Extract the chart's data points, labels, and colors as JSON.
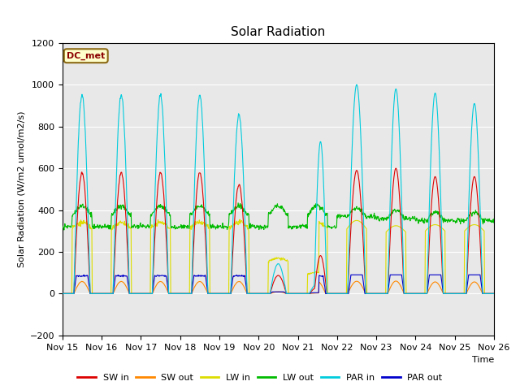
{
  "title": "Solar Radiation",
  "xlabel": "Time",
  "ylabel": "Solar Radiation (W/m2 umol/m2/s)",
  "ylim": [
    -200,
    1200
  ],
  "xlim": [
    0,
    264
  ],
  "yticks": [
    -200,
    0,
    200,
    400,
    600,
    800,
    1000,
    1200
  ],
  "xtick_labels": [
    "Nov 15",
    "Nov 16",
    "Nov 17",
    "Nov 18",
    "Nov 19",
    "Nov 20",
    "Nov 21",
    "Nov 22",
    "Nov 23",
    "Nov 24",
    "Nov 25",
    "Nov 26"
  ],
  "xtick_positions": [
    0,
    24,
    48,
    72,
    96,
    120,
    144,
    168,
    192,
    216,
    240,
    264
  ],
  "colors": {
    "SW_in": "#dd0000",
    "SW_out": "#ff8800",
    "LW_in": "#dddd00",
    "LW_out": "#00bb00",
    "PAR_in": "#00ccdd",
    "PAR_out": "#0000cc"
  },
  "bg_color": "#e8e8e8",
  "label_box": "DC_met",
  "grid_color": "#ffffff",
  "legend_labels": [
    "SW in",
    "SW out",
    "LW in",
    "LW out",
    "PAR in",
    "PAR out"
  ]
}
